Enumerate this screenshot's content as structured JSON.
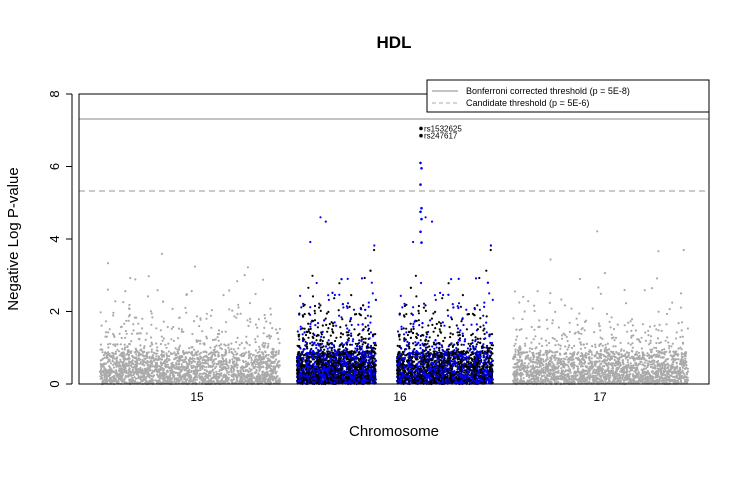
{
  "chart_data": {
    "type": "scatter",
    "title": "HDL",
    "xlabel": "Chromosome",
    "ylabel": "Negative Log P-value",
    "ylim": [
      0,
      8
    ],
    "yticks": [
      "0",
      "2",
      "4",
      "6",
      "8"
    ],
    "chromosomes": [
      "15",
      "16",
      "17"
    ],
    "highlight_chromosome": "16",
    "thresholds": [
      {
        "name": "Bonferroni corrected threshold (p = 5E-8)",
        "value": 7.3,
        "style": "solid"
      },
      {
        "name": "Candidate threshold (p = 5E-6)",
        "value": 5.3,
        "style": "dashed"
      }
    ],
    "legend_position": "top-right",
    "top_snps": [
      {
        "label": "rs1532625",
        "value": 7.05
      },
      {
        "label": "rs247617",
        "value": 6.85
      }
    ],
    "colors": {
      "other": "#aaaaaa",
      "highlight_primary": "#000000",
      "highlight_secondary": "#0000ff",
      "threshold_solid": "#888888",
      "threshold_dashed": "#aaaaaa"
    }
  }
}
